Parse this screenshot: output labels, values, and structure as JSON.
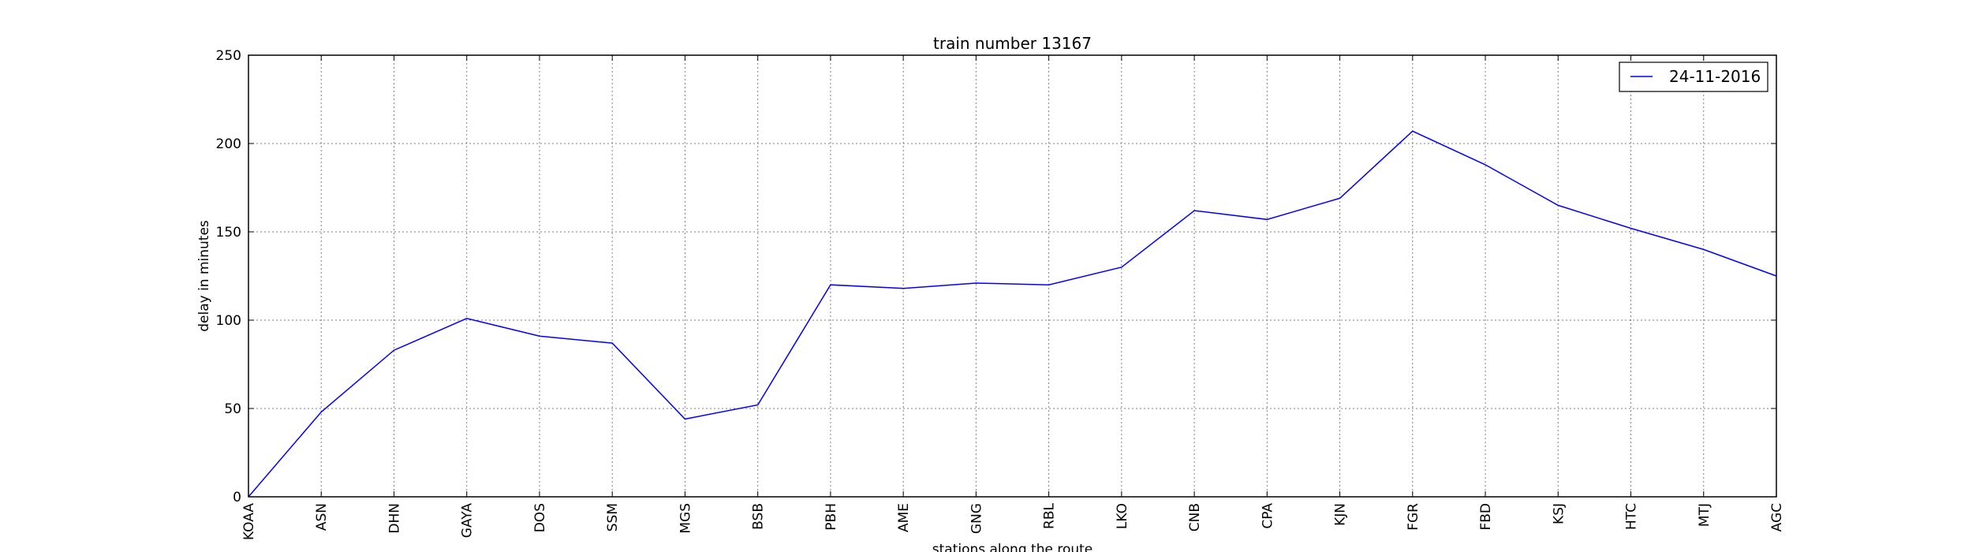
{
  "chart_data": {
    "type": "line",
    "title": "train number 13167",
    "xlabel": "stations along the route",
    "ylabel": "delay in minutes",
    "categories": [
      "KOAA",
      "ASN",
      "DHN",
      "GAYA",
      "DOS",
      "SSM",
      "MGS",
      "BSB",
      "PBH",
      "AME",
      "GNG",
      "RBL",
      "LKO",
      "CNB",
      "CPA",
      "KJN",
      "FGR",
      "FBD",
      "KSJ",
      "HTC",
      "MTJ",
      "AGC"
    ],
    "series": [
      {
        "name": "24-11-2016",
        "color": "#0000ff",
        "values": [
          0,
          48,
          83,
          101,
          91,
          87,
          44,
          52,
          120,
          118,
          121,
          120,
          130,
          162,
          157,
          169,
          207,
          188,
          165,
          152,
          140,
          125
        ]
      }
    ],
    "ylim": [
      0,
      250
    ],
    "yticks": [
      0,
      50,
      100,
      150,
      200,
      250
    ],
    "grid": true,
    "legend_position": "top-right"
  }
}
